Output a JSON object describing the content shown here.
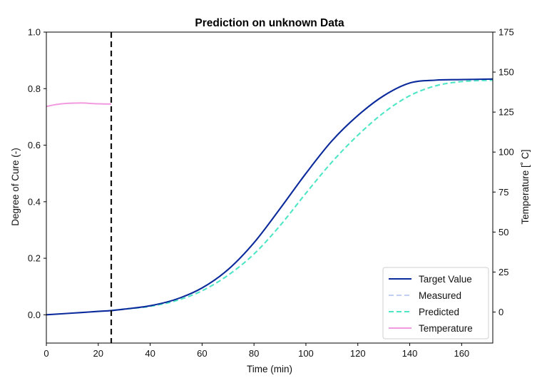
{
  "chart_data": {
    "type": "line",
    "title": "Prediction on unknown Data",
    "xlabel": "Time (min)",
    "ylabel": "Degree of Cure (-)",
    "ylabel_right": "Temperature [˚ C]",
    "xlim": [
      0,
      172
    ],
    "ylim": [
      -0.1,
      1.0
    ],
    "ylim_right": [
      -19.4,
      175
    ],
    "x_ticks": [
      0,
      20,
      40,
      60,
      80,
      100,
      120,
      140,
      160
    ],
    "y_ticks": [
      0.0,
      0.2,
      0.4,
      0.6,
      0.8,
      1.0
    ],
    "y_tick_labels": [
      "0.0",
      "0.2",
      "0.4",
      "0.6",
      "0.8",
      "1.0"
    ],
    "y_ticks_right": [
      0,
      25,
      50,
      75,
      100,
      125,
      150,
      175
    ],
    "vertical_line_x": 25,
    "grid": false,
    "legend_position": "bottom-right",
    "series": [
      {
        "name": "Target Value",
        "axis": "left",
        "color": "#0b2a9b",
        "dash": "solid",
        "x": [
          0,
          10,
          20,
          25,
          30,
          40,
          50,
          60,
          70,
          80,
          90,
          100,
          110,
          120,
          130,
          140,
          150,
          160,
          172
        ],
        "y": [
          0.0,
          0.006,
          0.012,
          0.015,
          0.02,
          0.032,
          0.055,
          0.095,
          0.16,
          0.255,
          0.375,
          0.5,
          0.615,
          0.705,
          0.775,
          0.82,
          0.83,
          0.832,
          0.834
        ]
      },
      {
        "name": "Measured",
        "axis": "left",
        "color": "#aebdf0",
        "dash": "dashed",
        "x": [
          0,
          5,
          10,
          15,
          20,
          25
        ],
        "y": [
          0.0,
          0.003,
          0.006,
          0.009,
          0.012,
          0.015
        ]
      },
      {
        "name": "Predicted",
        "axis": "left",
        "color": "#4fe6c6",
        "dash": "dashed",
        "x": [
          25,
          30,
          40,
          50,
          60,
          70,
          80,
          90,
          100,
          110,
          120,
          130,
          140,
          150,
          160,
          172
        ],
        "y": [
          0.015,
          0.02,
          0.03,
          0.05,
          0.085,
          0.14,
          0.215,
          0.315,
          0.43,
          0.54,
          0.635,
          0.715,
          0.775,
          0.81,
          0.825,
          0.83
        ]
      },
      {
        "name": "Temperature",
        "axis": "right",
        "color": "#f29ae0",
        "dash": "solid",
        "x": [
          0,
          3,
          6,
          10,
          14,
          18,
          22,
          25
        ],
        "y": [
          128.5,
          129.5,
          130.2,
          130.6,
          130.7,
          130.3,
          130.1,
          130.0
        ]
      }
    ]
  }
}
